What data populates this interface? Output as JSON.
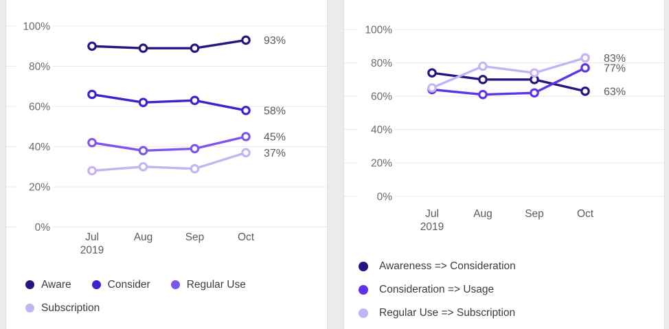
{
  "page": {
    "background": "#ebebeb",
    "panel_background": "#ffffff",
    "gridline_color": "#e8e8e8",
    "tick_text_color": "#6a6a6a",
    "end_label_color": "#595959"
  },
  "charts": [
    {
      "panel_name": "brand-funnel-levels",
      "chart_data": {
        "type": "line",
        "categories": [
          "Jul 2019",
          "Aug",
          "Sep",
          "Oct"
        ],
        "y_ticks": [
          "100%",
          "80%",
          "60%",
          "40%",
          "20%",
          "0%"
        ],
        "ylim": [
          0,
          100
        ],
        "grid": "horizontal",
        "legend_position": "bottom",
        "series": [
          {
            "name": "Aware",
            "color": "#261580",
            "values": [
              90,
              89,
              89,
              93
            ],
            "end_label": "93%"
          },
          {
            "name": "Consider",
            "color": "#3b23cd",
            "values": [
              66,
              62,
              63,
              58
            ],
            "end_label": "58%"
          },
          {
            "name": "Regular Use",
            "color": "#7d55ee",
            "values": [
              42,
              38,
              39,
              45
            ],
            "end_label": "45%"
          },
          {
            "name": "Subscription",
            "color": "#c5b4f4",
            "values": [
              28,
              30,
              29,
              37
            ],
            "end_label": "37%"
          }
        ]
      }
    },
    {
      "panel_name": "funnel-conversion-rates",
      "chart_data": {
        "type": "line",
        "categories": [
          "Jul 2019",
          "Aug",
          "Sep",
          "Oct"
        ],
        "y_ticks": [
          "100%",
          "80%",
          "60%",
          "40%",
          "20%",
          "0%"
        ],
        "ylim": [
          0,
          100
        ],
        "grid": "horizontal",
        "legend_position": "bottom",
        "series": [
          {
            "name": "Awareness => Consideration",
            "color": "#261580",
            "values": [
              74,
              70,
              70,
              63
            ],
            "end_label": "63%"
          },
          {
            "name": "Consideration => Usage",
            "color": "#5d34e6",
            "values": [
              64,
              61,
              62,
              77
            ],
            "end_label": "77%"
          },
          {
            "name": "Regular Use => Subscription",
            "color": "#c5b4f4",
            "values": [
              65,
              78,
              74,
              83
            ],
            "end_label": "83%"
          }
        ]
      }
    }
  ]
}
